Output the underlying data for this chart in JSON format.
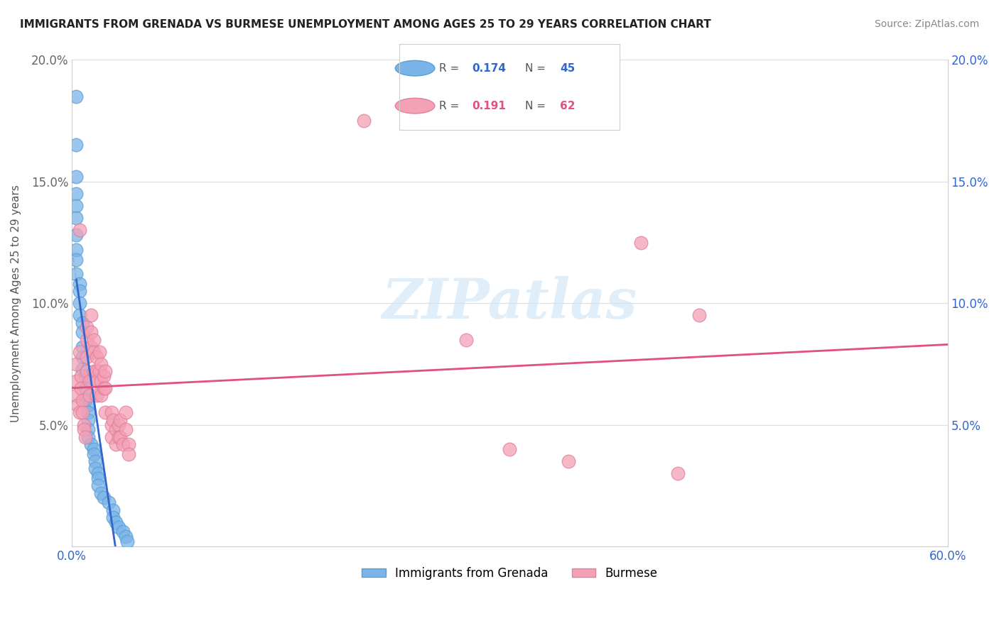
{
  "title": "IMMIGRANTS FROM GRENADA VS BURMESE UNEMPLOYMENT AMONG AGES 25 TO 29 YEARS CORRELATION CHART",
  "source": "Source: ZipAtlas.com",
  "ylabel": "Unemployment Among Ages 25 to 29 years",
  "xlim": [
    0,
    0.6
  ],
  "ylim": [
    0,
    0.2
  ],
  "yticks": [
    0.0,
    0.05,
    0.1,
    0.15,
    0.2
  ],
  "yticklabels": [
    "",
    "5.0%",
    "10.0%",
    "15.0%",
    "20.0%"
  ],
  "legend_labels": [
    "Immigrants from Grenada",
    "Burmese"
  ],
  "R_blue": 0.174,
  "N_blue": 45,
  "R_pink": 0.191,
  "N_pink": 62,
  "blue_color": "#7ab4e8",
  "pink_color": "#f4a0b5",
  "blue_edge_color": "#5a9fd4",
  "pink_edge_color": "#e080a0",
  "blue_line_color": "#3366cc",
  "pink_line_color": "#e05080",
  "gray_dash_color": "#bbbbbb",
  "watermark": "ZIPatlas",
  "blue_scatter_x": [
    0.003,
    0.003,
    0.003,
    0.003,
    0.003,
    0.003,
    0.003,
    0.003,
    0.003,
    0.003,
    0.005,
    0.005,
    0.005,
    0.005,
    0.007,
    0.007,
    0.007,
    0.007,
    0.007,
    0.009,
    0.009,
    0.009,
    0.011,
    0.011,
    0.011,
    0.011,
    0.011,
    0.013,
    0.015,
    0.015,
    0.016,
    0.016,
    0.018,
    0.018,
    0.018,
    0.02,
    0.022,
    0.025,
    0.028,
    0.028,
    0.03,
    0.032,
    0.035,
    0.037,
    0.038
  ],
  "blue_scatter_y": [
    0.185,
    0.165,
    0.152,
    0.145,
    0.14,
    0.135,
    0.128,
    0.122,
    0.118,
    0.112,
    0.108,
    0.105,
    0.1,
    0.095,
    0.092,
    0.088,
    0.082,
    0.078,
    0.073,
    0.07,
    0.065,
    0.06,
    0.058,
    0.055,
    0.052,
    0.048,
    0.045,
    0.042,
    0.04,
    0.038,
    0.035,
    0.032,
    0.03,
    0.028,
    0.025,
    0.022,
    0.02,
    0.018,
    0.015,
    0.012,
    0.01,
    0.008,
    0.006,
    0.004,
    0.002
  ],
  "pink_scatter_x": [
    0.003,
    0.003,
    0.003,
    0.004,
    0.005,
    0.005,
    0.005,
    0.006,
    0.006,
    0.007,
    0.007,
    0.008,
    0.008,
    0.009,
    0.01,
    0.01,
    0.01,
    0.01,
    0.012,
    0.012,
    0.013,
    0.013,
    0.013,
    0.015,
    0.015,
    0.015,
    0.017,
    0.017,
    0.017,
    0.017,
    0.019,
    0.019,
    0.02,
    0.02,
    0.02,
    0.022,
    0.022,
    0.023,
    0.023,
    0.023,
    0.027,
    0.027,
    0.027,
    0.028,
    0.03,
    0.03,
    0.032,
    0.032,
    0.033,
    0.033,
    0.035,
    0.037,
    0.037,
    0.039,
    0.039,
    0.2,
    0.27,
    0.3,
    0.34,
    0.39,
    0.415,
    0.43
  ],
  "pink_scatter_y": [
    0.075,
    0.068,
    0.062,
    0.058,
    0.055,
    0.13,
    0.08,
    0.07,
    0.065,
    0.06,
    0.055,
    0.05,
    0.048,
    0.045,
    0.09,
    0.085,
    0.078,
    0.072,
    0.068,
    0.062,
    0.095,
    0.088,
    0.082,
    0.085,
    0.08,
    0.072,
    0.078,
    0.072,
    0.068,
    0.062,
    0.08,
    0.072,
    0.075,
    0.068,
    0.062,
    0.07,
    0.065,
    0.072,
    0.065,
    0.055,
    0.055,
    0.05,
    0.045,
    0.052,
    0.048,
    0.042,
    0.05,
    0.045,
    0.052,
    0.045,
    0.042,
    0.055,
    0.048,
    0.042,
    0.038,
    0.175,
    0.085,
    0.04,
    0.035,
    0.125,
    0.03,
    0.095
  ]
}
